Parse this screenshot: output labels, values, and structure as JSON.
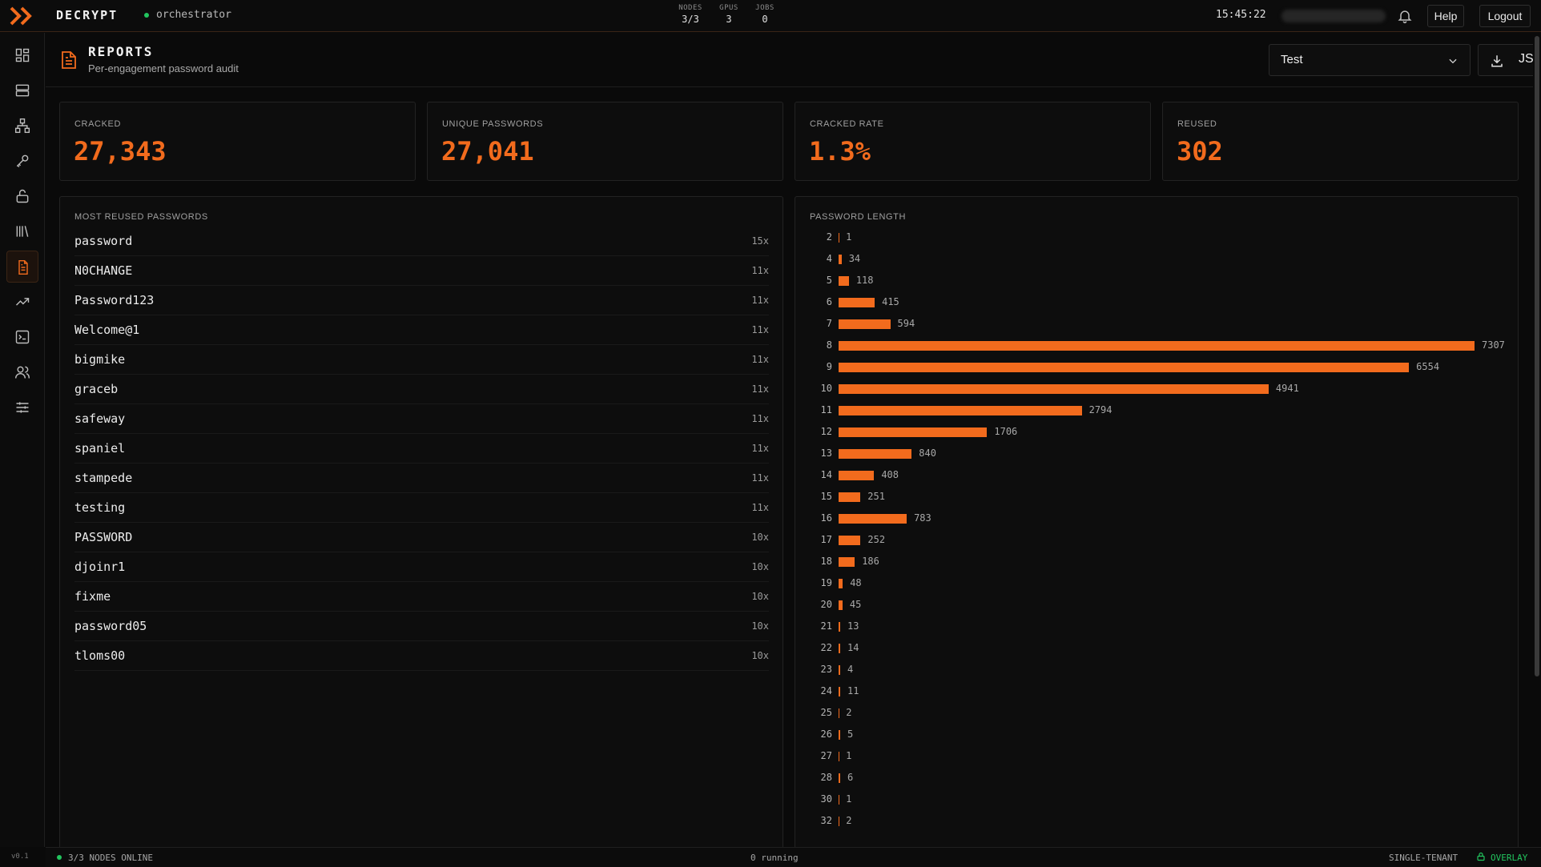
{
  "topbar": {
    "brand": "DECRYPT",
    "node_name": "orchestrator",
    "stats": [
      {
        "key": "NODES",
        "value": "3/3"
      },
      {
        "key": "GPUS",
        "value": "3"
      },
      {
        "key": "JOBS",
        "value": "0"
      }
    ],
    "clock": "15:45:22",
    "help_label": "Help",
    "logout_label": "Logout"
  },
  "sidebar": {
    "items": [
      {
        "icon": "dashboard-icon"
      },
      {
        "icon": "server-icon"
      },
      {
        "icon": "network-icon"
      },
      {
        "icon": "key-icon"
      },
      {
        "icon": "unlock-icon"
      },
      {
        "icon": "library-icon"
      },
      {
        "icon": "report-icon",
        "active": true
      },
      {
        "icon": "trending-up-icon"
      },
      {
        "icon": "terminal-icon"
      },
      {
        "icon": "users-icon"
      },
      {
        "icon": "sliders-icon"
      }
    ],
    "version": "v0.1"
  },
  "header": {
    "title": "REPORTS",
    "subtitle": "Per-engagement password audit",
    "engagement_select": "Test",
    "json_label": "JSON"
  },
  "cards": [
    {
      "label": "CRACKED",
      "value": "27,343"
    },
    {
      "label": "UNIQUE PASSWORDS",
      "value": "27,041"
    },
    {
      "label": "CRACKED RATE",
      "value": "1.3%"
    },
    {
      "label": "REUSED",
      "value": "302"
    }
  ],
  "reused": {
    "title": "MOST REUSED PASSWORDS",
    "items": [
      {
        "password": "password",
        "count": "15x"
      },
      {
        "password": "N0CHANGE",
        "count": "11x"
      },
      {
        "password": "Password123",
        "count": "11x"
      },
      {
        "password": "Welcome@1",
        "count": "11x"
      },
      {
        "password": "bigmike",
        "count": "11x"
      },
      {
        "password": "graceb",
        "count": "11x"
      },
      {
        "password": "safeway",
        "count": "11x"
      },
      {
        "password": "spaniel",
        "count": "11x"
      },
      {
        "password": "stampede",
        "count": "11x"
      },
      {
        "password": "testing",
        "count": "11x"
      },
      {
        "password": "PASSWORD",
        "count": "10x"
      },
      {
        "password": "djoinr1",
        "count": "10x"
      },
      {
        "password": "fixme",
        "count": "10x"
      },
      {
        "password": "password05",
        "count": "10x"
      },
      {
        "password": "tloms00",
        "count": "10x"
      }
    ]
  },
  "chart_data": {
    "type": "bar",
    "title": "PASSWORD LENGTH",
    "orientation": "horizontal",
    "categories": [
      "2",
      "4",
      "5",
      "6",
      "7",
      "8",
      "9",
      "10",
      "11",
      "12",
      "13",
      "14",
      "15",
      "16",
      "17",
      "18",
      "19",
      "20",
      "21",
      "22",
      "23",
      "24",
      "25",
      "26",
      "27",
      "28",
      "30",
      "32"
    ],
    "values": [
      1,
      34,
      118,
      415,
      594,
      7307,
      6554,
      4941,
      2794,
      1706,
      840,
      408,
      251,
      783,
      252,
      186,
      48,
      45,
      13,
      14,
      4,
      11,
      2,
      5,
      1,
      6,
      1,
      2
    ],
    "color": "#f26b1d"
  },
  "footer": {
    "nodes_online": "3/3 NODES ONLINE",
    "running": "0 running",
    "tenant": "SINGLE-TENANT",
    "overlay": "OVERLAY"
  },
  "colors": {
    "accent": "#f26b1d",
    "online": "#22c55e",
    "background": "#0a0a0a"
  }
}
